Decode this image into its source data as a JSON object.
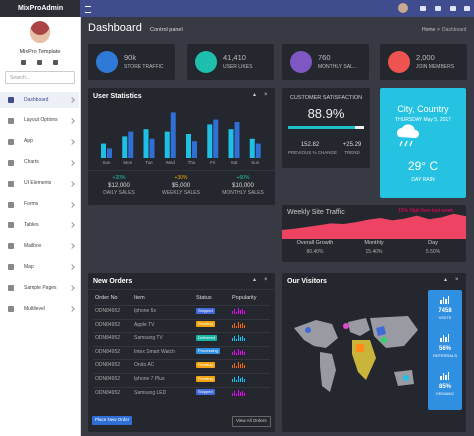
{
  "brand": "MixProAdmin",
  "user": {
    "name": "MixPro Template"
  },
  "search_placeholder": "Search...",
  "menu": [
    "Dashboard",
    "Layout Options",
    "App",
    "Charts",
    "UI Elements",
    "Forms",
    "Tables",
    "Mailbox",
    "Map",
    "Sample Pages",
    "Multilevel"
  ],
  "header": {
    "title": "Dashboard",
    "subtitle": "Control panel",
    "breadcrumb": [
      "Home",
      "Dashboard"
    ]
  },
  "stats": [
    {
      "value": "90k",
      "label": "STORE TRAFFIC",
      "color": "#2f7ad6"
    },
    {
      "value": "41,410",
      "label": "USER LIKES",
      "color": "#1fbfae"
    },
    {
      "value": "760",
      "label": "MONTHLY SAL...",
      "color": "#7e57c2"
    },
    {
      "value": "2,000",
      "label": "JOIN MEMBERS",
      "color": "#ef5350"
    }
  ],
  "user_statistics": {
    "title": "User Statistics",
    "chart": {
      "type": "bar",
      "categories": [
        "Sun",
        "Mon",
        "Tue",
        "Wed",
        "Thu",
        "Fri",
        "Sat",
        "Sun"
      ],
      "series": [
        {
          "color": "#1ec0e6",
          "values": [
            30,
            45,
            60,
            55,
            50,
            70,
            60,
            40
          ]
        },
        {
          "color": "#2f6fd6",
          "values": [
            20,
            55,
            40,
            95,
            35,
            80,
            75,
            30
          ]
        }
      ],
      "ylim": [
        0,
        100
      ]
    },
    "summary": [
      {
        "change": "+20%",
        "amount": "$12,000",
        "label": "DAILY SALES",
        "color": "#1fbfae"
      },
      {
        "change": "+30%",
        "amount": "$5,000",
        "label": "WEEKLY SALES",
        "color": "#f0a30a"
      },
      {
        "change": "+60%",
        "amount": "$10,000",
        "label": "MONTHLY SALES",
        "color": "#1fbfae"
      }
    ]
  },
  "satisfaction": {
    "title": "CUSTOMER SATISFACTION",
    "value": "88.9%",
    "items": [
      {
        "value": "152.82",
        "label": "PREVIOUS % CHANGE"
      },
      {
        "value": "+25.29",
        "label": "TREND"
      }
    ]
  },
  "weather": {
    "location": "City, Country",
    "date": "THURSDAY May 5, 2017",
    "temperature": "29° C",
    "condition": "DAY RAIN"
  },
  "traffic": {
    "title": "Weekly Site Traffic",
    "note": "15% High then last week",
    "chart": {
      "type": "area",
      "values": [
        30,
        34,
        40,
        46,
        52,
        50,
        56,
        64,
        70,
        62,
        68,
        78,
        66,
        72,
        84,
        76
      ],
      "ylim": [
        0,
        100
      ],
      "color": "#ec4462"
    },
    "items": [
      {
        "label": "Overall Growth",
        "value": "80.40%"
      },
      {
        "label": "Monthly",
        "value": "15.40%"
      },
      {
        "label": "Day",
        "value": "5.50%"
      }
    ]
  },
  "orders": {
    "title": "New Orders",
    "columns": [
      "Order No",
      "Item",
      "Status",
      "Popularity"
    ],
    "rows": [
      {
        "order": "ODN84952",
        "item": "Iphone 6s",
        "status": "Shipped",
        "status_color": "#3f6ad8"
      },
      {
        "order": "ODN84952",
        "item": "Apple TV",
        "status": "Pending",
        "status_color": "#f0a30a"
      },
      {
        "order": "ODN84952",
        "item": "Samsung TV",
        "status": "Delivered",
        "status_color": "#17b3a3"
      },
      {
        "order": "ODN84952",
        "item": "Intex Smart Watch",
        "status": "Processing",
        "status_color": "#2f8fe0"
      },
      {
        "order": "ODN84952",
        "item": "Ondo AC",
        "status": "Pending",
        "status_color": "#f0a30a"
      },
      {
        "order": "ODN84952",
        "item": "Iphone 7 Plus",
        "status": "Pending",
        "status_color": "#f0a30a"
      },
      {
        "order": "ODN84952",
        "item": "Samsung LED",
        "status": "Shipped",
        "status_color": "#3f6ad8"
      }
    ],
    "buttons": [
      "Place New Order",
      "View All Orders"
    ]
  },
  "visitors": {
    "title": "Our Visitors",
    "items": [
      {
        "value": "7458",
        "label": "VISITS"
      },
      {
        "value": "56%",
        "label": "REFERRALS"
      },
      {
        "value": "85%",
        "label": "ORGANIC"
      }
    ]
  }
}
